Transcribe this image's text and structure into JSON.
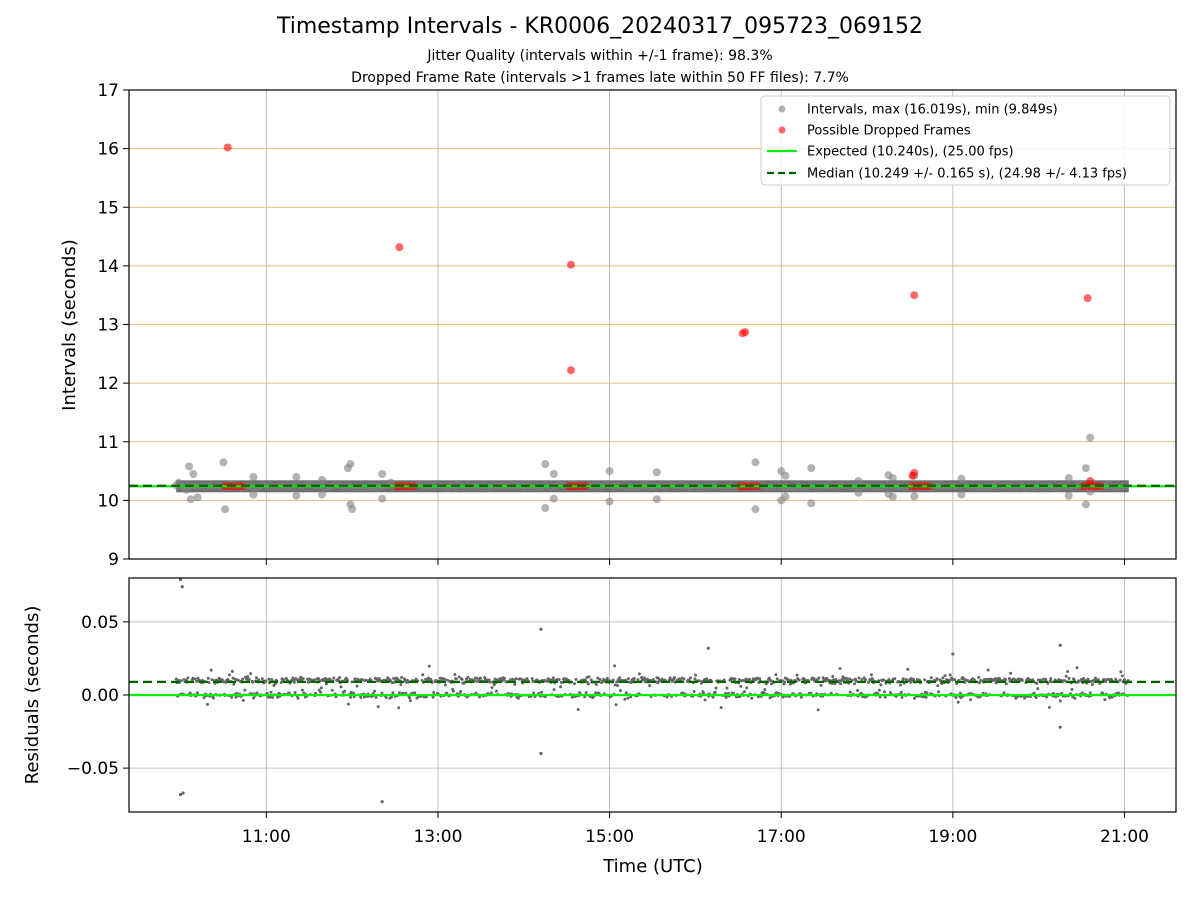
{
  "chart_data": [
    {
      "type": "scatter",
      "title": "Timestamp Intervals - KR0006_20240317_095723_069152",
      "subtitle_lines": [
        "Jitter Quality (intervals within +/-1 frame): 98.3%",
        "Dropped Frame Rate (intervals >1 frames late within 50 FF files): 7.7%"
      ],
      "ylabel": "Intervals (seconds)",
      "ylim": [
        9,
        17
      ],
      "yticks": [
        9,
        10,
        11,
        12,
        13,
        14,
        15,
        16,
        17
      ],
      "xlim_hours": [
        9.4,
        21.6
      ],
      "horizontal_gridlines": [
        10,
        11,
        12,
        13,
        14,
        15,
        16
      ],
      "gridline_color": "#dbc07e",
      "legend_position": "top-right",
      "legend": [
        "Intervals, max (16.019s), min (9.849s)",
        "Possible Dropped Frames",
        "Expected (10.240s), (25.00 fps)",
        "Median (10.249 +/- 0.165 s), (24.98 +/- 4.13 fps)"
      ],
      "expected_interval": 10.24,
      "median_interval": 10.249,
      "series": [
        {
          "name": "Intervals, max (16.019s), min (9.849s)",
          "color": "#808080",
          "dense_band": {
            "x_range_hours": [
              9.95,
              21.05
            ],
            "y": 10.24
          },
          "points": [
            [
              9.98,
              10.3
            ],
            [
              10.05,
              10.2
            ],
            [
              10.1,
              10.58
            ],
            [
              10.12,
              10.02
            ],
            [
              10.15,
              10.45
            ],
            [
              10.2,
              10.05
            ],
            [
              10.07,
              10.18
            ],
            [
              10.5,
              10.65
            ],
            [
              10.52,
              9.85
            ],
            [
              10.85,
              10.4
            ],
            [
              10.85,
              10.1
            ],
            [
              11.35,
              10.4
            ],
            [
              11.35,
              10.08
            ],
            [
              11.65,
              10.35
            ],
            [
              11.65,
              10.1
            ],
            [
              11.95,
              10.55
            ],
            [
              11.98,
              10.62
            ],
            [
              11.98,
              9.93
            ],
            [
              12.0,
              9.85
            ],
            [
              12.35,
              10.45
            ],
            [
              12.35,
              10.03
            ],
            [
              12.45,
              10.3
            ],
            [
              13.2,
              10.25
            ],
            [
              14.0,
              10.22
            ],
            [
              14.25,
              10.62
            ],
            [
              14.25,
              9.87
            ],
            [
              14.35,
              10.45
            ],
            [
              14.35,
              10.03
            ],
            [
              15.0,
              10.5
            ],
            [
              15.0,
              9.98
            ],
            [
              15.55,
              10.48
            ],
            [
              15.55,
              10.02
            ],
            [
              16.7,
              10.65
            ],
            [
              16.7,
              9.85
            ],
            [
              17.0,
              10.5
            ],
            [
              17.0,
              10.0
            ],
            [
              17.05,
              10.42
            ],
            [
              17.05,
              10.07
            ],
            [
              17.35,
              10.55
            ],
            [
              17.35,
              9.95
            ],
            [
              17.9,
              10.33
            ],
            [
              17.9,
              10.13
            ],
            [
              18.25,
              10.43
            ],
            [
              18.25,
              10.11
            ],
            [
              18.3,
              10.38
            ],
            [
              18.3,
              10.06
            ],
            [
              18.55,
              10.42
            ],
            [
              18.55,
              10.07
            ],
            [
              19.1,
              10.37
            ],
            [
              19.1,
              10.1
            ],
            [
              20.35,
              10.38
            ],
            [
              20.35,
              10.08
            ],
            [
              20.55,
              10.55
            ],
            [
              20.55,
              9.93
            ],
            [
              20.6,
              11.07
            ],
            [
              20.6,
              10.15
            ]
          ]
        },
        {
          "name": "Possible Dropped Frames",
          "color": "#ff0000",
          "points": [
            [
              10.55,
              16.019
            ],
            [
              12.55,
              14.32
            ],
            [
              14.55,
              14.02
            ],
            [
              14.55,
              12.22
            ],
            [
              16.55,
              12.85
            ],
            [
              16.58,
              12.87
            ],
            [
              18.55,
              13.5
            ],
            [
              18.53,
              10.42
            ],
            [
              18.55,
              10.47
            ],
            [
              20.57,
              13.45
            ],
            [
              20.6,
              10.33
            ],
            [
              10.52,
              10.24
            ],
            [
              10.57,
              10.24
            ],
            [
              10.62,
              10.24
            ],
            [
              10.67,
              10.24
            ],
            [
              10.72,
              10.24
            ],
            [
              12.52,
              10.24
            ],
            [
              12.57,
              10.24
            ],
            [
              12.62,
              10.24
            ],
            [
              12.67,
              10.24
            ],
            [
              12.72,
              10.24
            ],
            [
              14.52,
              10.24
            ],
            [
              14.57,
              10.24
            ],
            [
              14.62,
              10.24
            ],
            [
              14.67,
              10.24
            ],
            [
              14.72,
              10.24
            ],
            [
              16.52,
              10.24
            ],
            [
              16.57,
              10.24
            ],
            [
              16.62,
              10.24
            ],
            [
              16.67,
              10.24
            ],
            [
              16.72,
              10.24
            ],
            [
              18.52,
              10.24
            ],
            [
              18.57,
              10.24
            ],
            [
              18.62,
              10.24
            ],
            [
              18.67,
              10.24
            ],
            [
              18.72,
              10.24
            ],
            [
              20.52,
              10.24
            ],
            [
              20.57,
              10.24
            ],
            [
              20.62,
              10.24
            ],
            [
              20.67,
              10.24
            ],
            [
              20.72,
              10.24
            ]
          ]
        }
      ]
    },
    {
      "type": "scatter",
      "xlabel": "Time (UTC)",
      "ylabel": "Residuals (seconds)",
      "ylim": [
        -0.08,
        0.08
      ],
      "yticks": [
        -0.05,
        0.0,
        0.05
      ],
      "ytick_labels": [
        "−0.05",
        "0.00",
        "0.05"
      ],
      "xlim_hours": [
        9.4,
        21.6
      ],
      "xticks_hours": [
        11,
        13,
        15,
        17,
        19,
        21
      ],
      "xtick_labels": [
        "11:00",
        "13:00",
        "15:00",
        "17:00",
        "19:00",
        "21:00"
      ],
      "expected_residual": 0.0,
      "median_residual": 0.009,
      "series": [
        {
          "name": "Residuals",
          "color": "#666666",
          "x_range_hours": [
            9.95,
            21.05
          ],
          "cluster_levels": [
            0.0,
            0.01
          ],
          "outliers": [
            [
              10.0,
              0.079
            ],
            [
              10.02,
              0.074
            ],
            [
              10.0,
              -0.068
            ],
            [
              10.03,
              -0.067
            ],
            [
              14.2,
              0.045
            ],
            [
              14.2,
              -0.04
            ],
            [
              12.35,
              -0.073
            ],
            [
              20.25,
              0.034
            ],
            [
              20.25,
              -0.022
            ],
            [
              16.15,
              0.032
            ],
            [
              19.0,
              0.028
            ]
          ]
        }
      ]
    }
  ]
}
